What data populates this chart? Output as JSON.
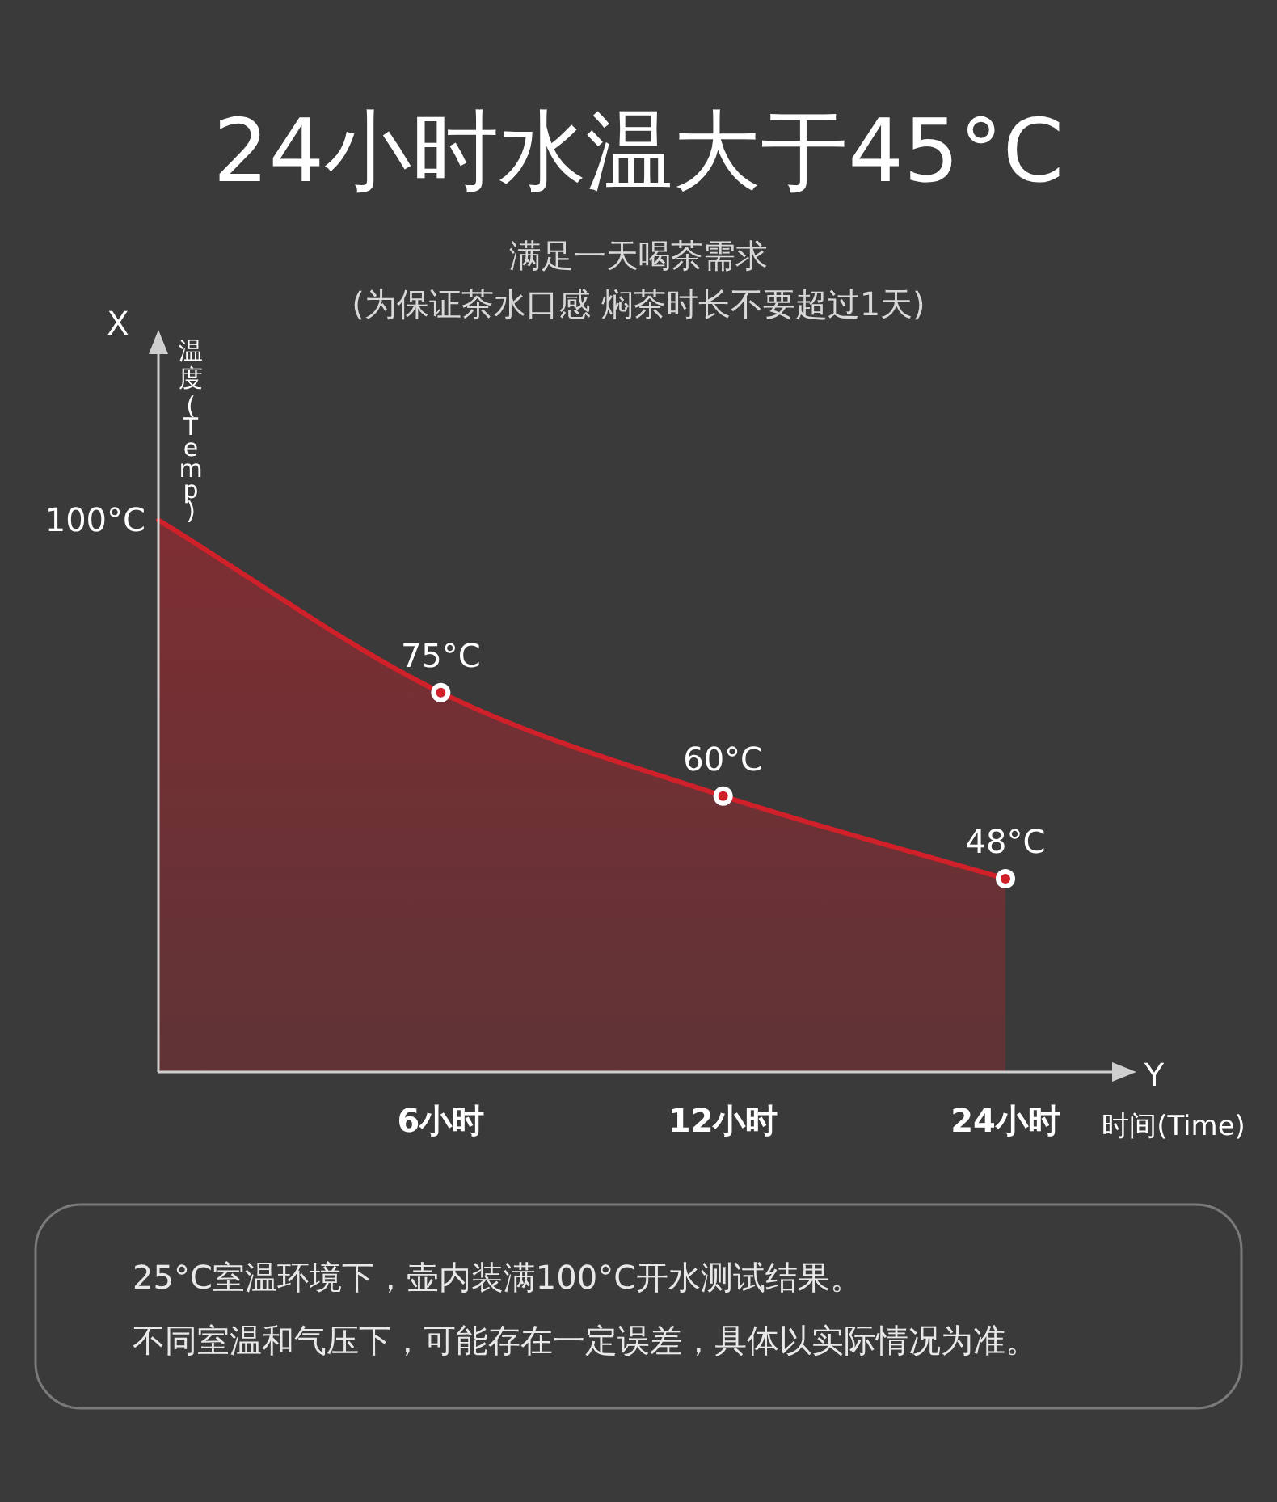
{
  "chart_data": {
    "type": "area",
    "title": "24小时水温大于45°C",
    "subtitle": "满足一天喝茶需求",
    "annotations": [
      "(为保证茶水口感 焖茶时长不要超过1天)",
      "X",
      "Y",
      "25°C室温环境下，壶内装满100°C开水测试结果。",
      "不同室温和气压下，可能存在一定误差，具体以实际情况为准。",
      "100°C"
    ],
    "xlabel": "时间(Time)",
    "ylabel": "温度(Temp)",
    "categories": [
      null,
      "6小时",
      "12小时",
      "24小时"
    ],
    "values": [
      100,
      75,
      60,
      48
    ],
    "value_labels": [
      null,
      "75°C",
      "60°C",
      "48°C"
    ],
    "ylim": [
      20,
      125
    ],
    "color": "#d0202a",
    "marker": "circle"
  }
}
